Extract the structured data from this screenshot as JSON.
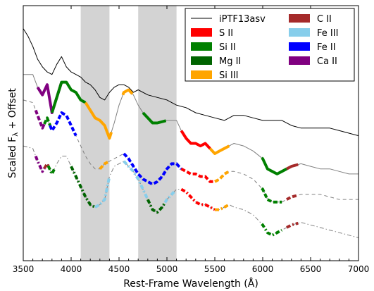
{
  "chart_data": {
    "type": "line",
    "title": "",
    "xlabel": "Rest-Frame Wavelength (Å)",
    "ylabel_prefix": "Scaled F",
    "ylabel_sub": "λ",
    "ylabel_suffix": " + Offset",
    "xlim": [
      3500,
      7000
    ],
    "ylim": [
      0,
      1
    ],
    "xticks": [
      3500,
      4000,
      4500,
      5000,
      5500,
      6000,
      6500,
      7000
    ],
    "xtick_labels": [
      "3500",
      "4000",
      "4500",
      "5000",
      "5500",
      "6000",
      "6500",
      "7000"
    ],
    "y_tick_labels_shown": false,
    "grid": false,
    "legend_position": "top-right",
    "shaded_regions": [
      [
        4100,
        4400
      ],
      [
        4700,
        5100
      ]
    ],
    "shaded_color": "#d3d3d3",
    "legend": [
      {
        "label": "iPTF13asv",
        "color": "#000000",
        "kind": "line"
      },
      {
        "label": "S II",
        "color": "#ff0000",
        "kind": "patch"
      },
      {
        "label": "Si II",
        "color": "#008000",
        "kind": "patch"
      },
      {
        "label": "Mg II",
        "color": "#006400",
        "kind": "patch"
      },
      {
        "label": "Si III",
        "color": "#ffa500",
        "kind": "patch"
      },
      {
        "label": "C II",
        "color": "#a52a2a",
        "kind": "patch"
      },
      {
        "label": "Fe III",
        "color": "#87ceeb",
        "kind": "patch"
      },
      {
        "label": "Fe II",
        "color": "#0000ff",
        "kind": "patch"
      },
      {
        "label": "Ca II",
        "color": "#800080",
        "kind": "patch"
      }
    ],
    "series": [
      {
        "name": "iPTF13asv",
        "role": "observed",
        "color": "#000000",
        "x": [
          3500,
          3550,
          3600,
          3650,
          3700,
          3750,
          3800,
          3850,
          3900,
          3950,
          4000,
          4050,
          4100,
          4150,
          4200,
          4250,
          4300,
          4350,
          4400,
          4450,
          4500,
          4550,
          4600,
          4650,
          4700,
          4800,
          4900,
          5000,
          5100,
          5200,
          5300,
          5400,
          5500,
          5600,
          5700,
          5800,
          5900,
          6000,
          6100,
          6200,
          6300,
          6400,
          6500,
          6600,
          6700,
          6800,
          6900,
          7000
        ],
        "y": [
          0.91,
          0.88,
          0.84,
          0.79,
          0.76,
          0.74,
          0.73,
          0.77,
          0.8,
          0.76,
          0.74,
          0.73,
          0.72,
          0.7,
          0.69,
          0.67,
          0.64,
          0.63,
          0.66,
          0.68,
          0.69,
          0.69,
          0.68,
          0.66,
          0.67,
          0.65,
          0.64,
          0.63,
          0.61,
          0.6,
          0.58,
          0.57,
          0.56,
          0.55,
          0.57,
          0.57,
          0.56,
          0.55,
          0.55,
          0.55,
          0.53,
          0.52,
          0.52,
          0.52,
          0.52,
          0.51,
          0.5,
          0.49
        ]
      },
      {
        "name": "",
        "role": "model",
        "style": "solid",
        "offset_index": 0,
        "x": [
          3500,
          3600,
          3650,
          3700,
          3750,
          3800,
          3850,
          3900,
          3950,
          4000,
          4050,
          4100,
          4150,
          4200,
          4250,
          4300,
          4350,
          4400,
          4450,
          4500,
          4550,
          4600,
          4650,
          4700,
          4750,
          4800,
          4850,
          4900,
          5000,
          5100,
          5150,
          5200,
          5250,
          5300,
          5350,
          5400,
          5450,
          5500,
          5550,
          5600,
          5650,
          5700,
          5800,
          5900,
          6000,
          6050,
          6100,
          6150,
          6200,
          6250,
          6300,
          6400,
          6500,
          6600,
          6700,
          6800,
          6900,
          7000
        ],
        "y": [
          0.73,
          0.73,
          0.68,
          0.65,
          0.69,
          0.58,
          0.64,
          0.7,
          0.7,
          0.67,
          0.66,
          0.63,
          0.62,
          0.59,
          0.56,
          0.55,
          0.53,
          0.48,
          0.54,
          0.61,
          0.66,
          0.67,
          0.65,
          0.61,
          0.58,
          0.56,
          0.54,
          0.54,
          0.55,
          0.55,
          0.51,
          0.48,
          0.46,
          0.46,
          0.45,
          0.46,
          0.44,
          0.42,
          0.43,
          0.44,
          0.45,
          0.46,
          0.45,
          0.43,
          0.4,
          0.36,
          0.35,
          0.34,
          0.35,
          0.36,
          0.37,
          0.38,
          0.37,
          0.36,
          0.36,
          0.35,
          0.34,
          0.34
        ],
        "segments": [
          {
            "ion": "Ca II",
            "color": "#800080",
            "x0": 3650,
            "x1": 3900
          },
          {
            "ion": "Si II",
            "color": "#008000",
            "x0": 3800,
            "x1": 4150
          },
          {
            "ion": "Si III",
            "color": "#ffa500",
            "x0": 4150,
            "x1": 4420
          },
          {
            "ion": "Si III",
            "color": "#ffa500",
            "x0": 4540,
            "x1": 4640
          },
          {
            "ion": "Si II",
            "color": "#008000",
            "x0": 4750,
            "x1": 4990
          },
          {
            "ion": "S II",
            "color": "#ff0000",
            "x0": 5150,
            "x1": 5450
          },
          {
            "ion": "Si III",
            "color": "#ffa500",
            "x0": 5450,
            "x1": 5650
          },
          {
            "ion": "Si II",
            "color": "#008000",
            "x0": 5990,
            "x1": 6250
          },
          {
            "ion": "C II",
            "color": "#a52a2a",
            "x0": 6250,
            "x1": 6370
          }
        ]
      },
      {
        "name": "",
        "role": "model",
        "style": "dashed",
        "offset_index": 1,
        "x": [
          3500,
          3600,
          3650,
          3700,
          3750,
          3800,
          3850,
          3900,
          3950,
          4000,
          4050,
          4100,
          4150,
          4200,
          4250,
          4300,
          4350,
          4400,
          4450,
          4500,
          4550,
          4600,
          4650,
          4700,
          4750,
          4800,
          4850,
          4900,
          4950,
          5000,
          5050,
          5100,
          5150,
          5200,
          5250,
          5300,
          5350,
          5400,
          5450,
          5500,
          5550,
          5600,
          5650,
          5700,
          5800,
          5900,
          6000,
          6050,
          6100,
          6150,
          6200,
          6250,
          6300,
          6400,
          6500,
          6600,
          6700,
          6800,
          6900,
          7000
        ],
        "y": [
          0.63,
          0.62,
          0.57,
          0.52,
          0.56,
          0.51,
          0.54,
          0.58,
          0.57,
          0.53,
          0.49,
          0.45,
          0.41,
          0.38,
          0.36,
          0.36,
          0.38,
          0.39,
          0.4,
          0.41,
          0.42,
          0.4,
          0.37,
          0.34,
          0.32,
          0.31,
          0.3,
          0.31,
          0.33,
          0.36,
          0.38,
          0.38,
          0.36,
          0.35,
          0.34,
          0.34,
          0.33,
          0.33,
          0.31,
          0.31,
          0.32,
          0.34,
          0.35,
          0.35,
          0.34,
          0.32,
          0.28,
          0.24,
          0.23,
          0.23,
          0.23,
          0.24,
          0.25,
          0.26,
          0.26,
          0.26,
          0.25,
          0.24,
          0.24,
          0.24
        ],
        "segments": [
          {
            "ion": "Ca II",
            "color": "#800080",
            "x0": 3630,
            "x1": 3720
          },
          {
            "ion": "Si II",
            "color": "#008000",
            "x0": 3720,
            "x1": 3780
          },
          {
            "ion": "Fe II",
            "color": "#0000ff",
            "x0": 3780,
            "x1": 4050
          },
          {
            "ion": "Fe II",
            "color": "#0000ff",
            "x0": 4550,
            "x1": 5150
          },
          {
            "ion": "Si III",
            "color": "#ffa500",
            "x0": 4300,
            "x1": 4400
          },
          {
            "ion": "S II",
            "color": "#ff0000",
            "x0": 5150,
            "x1": 5500
          },
          {
            "ion": "Si III",
            "color": "#ffa500",
            "x0": 5500,
            "x1": 5650
          },
          {
            "ion": "Si II",
            "color": "#008000",
            "x0": 5990,
            "x1": 6200
          },
          {
            "ion": "C II",
            "color": "#a52a2a",
            "x0": 6250,
            "x1": 6370
          }
        ]
      },
      {
        "name": "",
        "role": "model",
        "style": "dashdot",
        "offset_index": 2,
        "x": [
          3500,
          3600,
          3650,
          3700,
          3750,
          3800,
          3850,
          3900,
          3950,
          4000,
          4050,
          4100,
          4150,
          4200,
          4250,
          4300,
          4350,
          4400,
          4450,
          4500,
          4550,
          4600,
          4650,
          4700,
          4750,
          4800,
          4850,
          4900,
          4950,
          5000,
          5050,
          5100,
          5150,
          5200,
          5250,
          5300,
          5350,
          5400,
          5450,
          5500,
          5550,
          5600,
          5650,
          5700,
          5800,
          5900,
          6000,
          6050,
          6100,
          6150,
          6200,
          6250,
          6300,
          6400,
          6500,
          6600,
          6700,
          6800,
          6900,
          7000
        ],
        "y": [
          0.45,
          0.44,
          0.39,
          0.35,
          0.38,
          0.34,
          0.38,
          0.41,
          0.41,
          0.37,
          0.33,
          0.29,
          0.25,
          0.22,
          0.21,
          0.22,
          0.24,
          0.33,
          0.37,
          0.38,
          0.39,
          0.37,
          0.35,
          0.32,
          0.28,
          0.24,
          0.2,
          0.19,
          0.21,
          0.24,
          0.26,
          0.28,
          0.28,
          0.27,
          0.25,
          0.23,
          0.22,
          0.22,
          0.21,
          0.2,
          0.2,
          0.21,
          0.22,
          0.21,
          0.2,
          0.18,
          0.14,
          0.11,
          0.1,
          0.11,
          0.12,
          0.13,
          0.14,
          0.15,
          0.14,
          0.13,
          0.12,
          0.11,
          0.1,
          0.09
        ],
        "segments": [
          {
            "ion": "Ca II",
            "color": "#800080",
            "x0": 3630,
            "x1": 3720
          },
          {
            "ion": "C II",
            "color": "#a52a2a",
            "x0": 3720,
            "x1": 3760
          },
          {
            "ion": "Si II",
            "color": "#008000",
            "x0": 3760,
            "x1": 3830
          },
          {
            "ion": "Mg II",
            "color": "#006400",
            "x0": 4000,
            "x1": 4250
          },
          {
            "ion": "Fe III",
            "color": "#87ceeb",
            "x0": 4250,
            "x1": 4400
          },
          {
            "ion": "Fe III",
            "color": "#87ceeb",
            "x0": 4550,
            "x1": 4800
          },
          {
            "ion": "Mg II",
            "color": "#006400",
            "x0": 4800,
            "x1": 4980
          },
          {
            "ion": "Fe III",
            "color": "#87ceeb",
            "x0": 4980,
            "x1": 5080
          },
          {
            "ion": "S II",
            "color": "#ff0000",
            "x0": 5150,
            "x1": 5500
          },
          {
            "ion": "Si III",
            "color": "#ffa500",
            "x0": 5500,
            "x1": 5650
          },
          {
            "ion": "Si II",
            "color": "#008000",
            "x0": 5990,
            "x1": 6200
          },
          {
            "ion": "C II",
            "color": "#a52a2a",
            "x0": 6250,
            "x1": 6370
          }
        ]
      }
    ]
  }
}
